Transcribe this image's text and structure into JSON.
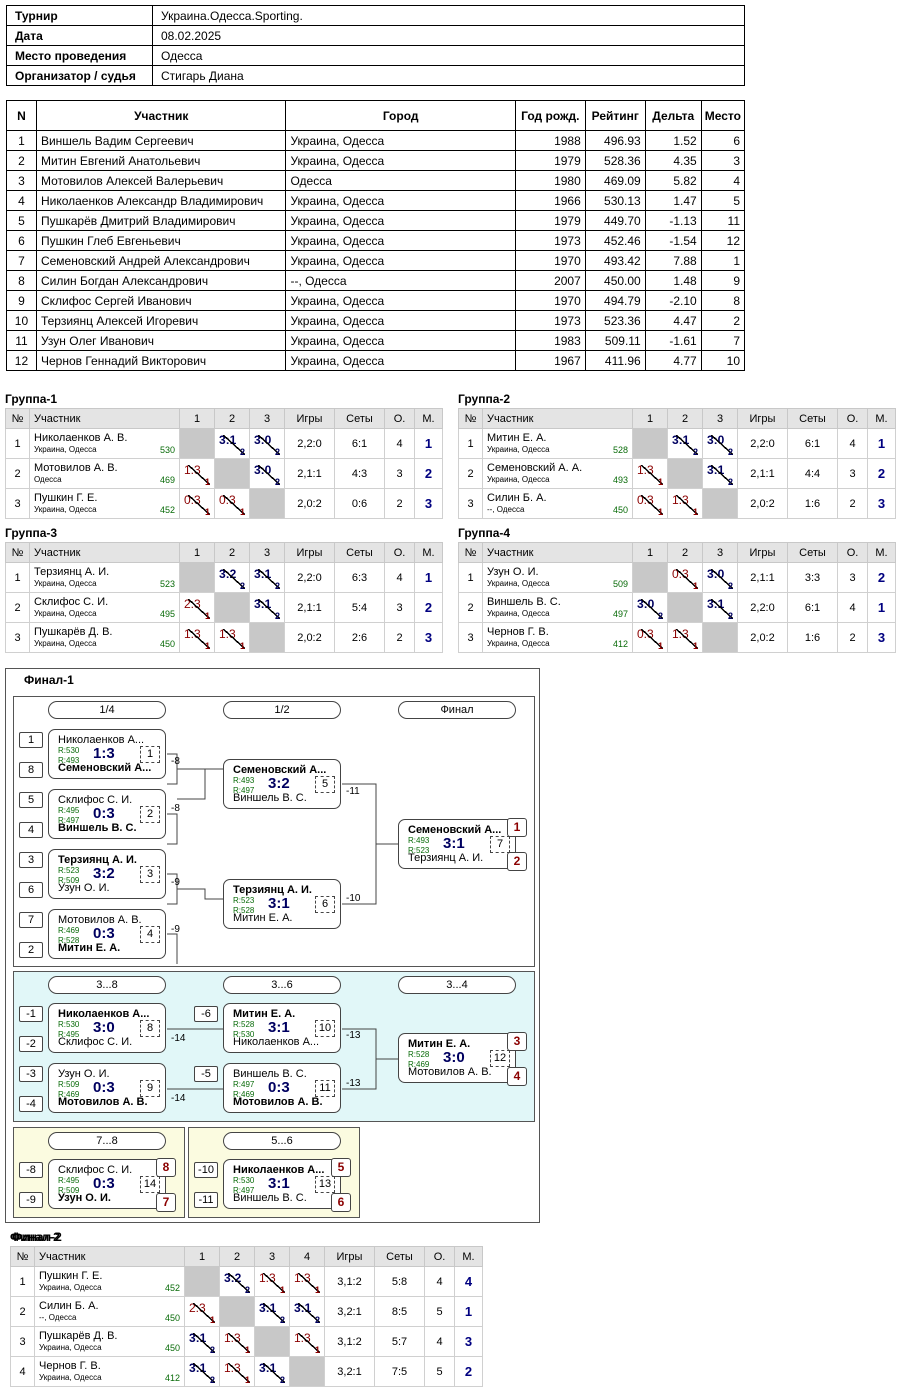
{
  "info": {
    "rows": [
      {
        "k": "Турнир",
        "v": "Украина.Одесса.Sporting."
      },
      {
        "k": "Дата",
        "v": "08.02.2025"
      },
      {
        "k": "Место проведения",
        "v": "Одесса"
      },
      {
        "k": "Организатор / судья",
        "v": "Стигарь Диана"
      }
    ]
  },
  "main": {
    "headers": [
      "N",
      "Участник",
      "Город",
      "Год рожд.",
      "Рейтинг",
      "Дельта",
      "Место"
    ],
    "rows": [
      [
        "1",
        "Виншель Вадим Сергеевич",
        "Украина, Одесса",
        "1988",
        "496.93",
        "1.52",
        "6"
      ],
      [
        "2",
        "Митин Евгений Анатольевич",
        "Украина, Одесса",
        "1979",
        "528.36",
        "4.35",
        "3"
      ],
      [
        "3",
        "Мотовилов Алексей Валерьевич",
        "Одесса",
        "1980",
        "469.09",
        "5.82",
        "4"
      ],
      [
        "4",
        "Николаенков Александр Владимирович",
        "Украина, Одесса",
        "1966",
        "530.13",
        "1.47",
        "5"
      ],
      [
        "5",
        "Пушкарёв Дмитрий Владимирович",
        "Украина, Одесса",
        "1979",
        "449.70",
        "-1.13",
        "11"
      ],
      [
        "6",
        "Пушкин Глеб Евгеньевич",
        "Украина, Одесса",
        "1973",
        "452.46",
        "-1.54",
        "12"
      ],
      [
        "7",
        "Семеновский Андрей Александрович",
        "Украина, Одесса",
        "1970",
        "493.42",
        "7.88",
        "1"
      ],
      [
        "8",
        "Силин Богдан Александрович",
        "--, Одесса",
        "2007",
        "450.00",
        "1.48",
        "9"
      ],
      [
        "9",
        "Склифос Сергей Иванович",
        "Украина, Одесса",
        "1970",
        "494.79",
        "-2.10",
        "8"
      ],
      [
        "10",
        "Терзиянц Алексей Игоревич",
        "Украина, Одесса",
        "1973",
        "523.36",
        "4.47",
        "2"
      ],
      [
        "11",
        "Узун Олег Иванович",
        "Украина, Одесса",
        "1983",
        "509.11",
        "-1.61",
        "7"
      ],
      [
        "12",
        "Чернов Геннадий Викторович",
        "Украина, Одесса",
        "1967",
        "411.96",
        "4.77",
        "10"
      ]
    ]
  },
  "gheaders": [
    "№",
    "Участник",
    "1",
    "2",
    "3",
    "Игры",
    "Сеты",
    "О.",
    "М."
  ],
  "groups": [
    {
      "title": "Группа-1",
      "rows": [
        {
          "n": "1",
          "name": "Николаенков А. В.",
          "city": "Украина, Одесса",
          "r": "530",
          "s": [
            "",
            "3:1",
            "3:0"
          ],
          "p": [
            "",
            "2",
            "2"
          ],
          "w": [
            0,
            1,
            1
          ],
          "g": "2,2:0",
          "sets": "6:1",
          "o": "4",
          "m": "1"
        },
        {
          "n": "2",
          "name": "Мотовилов А. В.",
          "city": "Одесса",
          "r": "469",
          "s": [
            "1:3",
            "",
            "3:0"
          ],
          "p": [
            "1",
            "",
            "2"
          ],
          "w": [
            0,
            0,
            1
          ],
          "g": "2,1:1",
          "sets": "4:3",
          "o": "3",
          "m": "2"
        },
        {
          "n": "3",
          "name": "Пушкин Г. Е.",
          "city": "Украина, Одесса",
          "r": "452",
          "s": [
            "0:3",
            "0:3",
            ""
          ],
          "p": [
            "1",
            "1",
            ""
          ],
          "w": [
            0,
            0,
            0
          ],
          "g": "2,0:2",
          "sets": "0:6",
          "o": "2",
          "m": "3"
        }
      ]
    },
    {
      "title": "Группа-2",
      "rows": [
        {
          "n": "1",
          "name": "Митин Е. А.",
          "city": "Украина, Одесса",
          "r": "528",
          "s": [
            "",
            "3:1",
            "3:0"
          ],
          "p": [
            "",
            "2",
            "2"
          ],
          "w": [
            0,
            1,
            1
          ],
          "g": "2,2:0",
          "sets": "6:1",
          "o": "4",
          "m": "1"
        },
        {
          "n": "2",
          "name": "Семеновский А. А.",
          "city": "Украина, Одесса",
          "r": "493",
          "s": [
            "1:3",
            "",
            "3:1"
          ],
          "p": [
            "1",
            "",
            "2"
          ],
          "w": [
            0,
            0,
            1
          ],
          "g": "2,1:1",
          "sets": "4:4",
          "o": "3",
          "m": "2"
        },
        {
          "n": "3",
          "name": "Силин Б. А.",
          "city": "--, Одесса",
          "r": "450",
          "s": [
            "0:3",
            "1:3",
            ""
          ],
          "p": [
            "1",
            "1",
            ""
          ],
          "w": [
            0,
            0,
            0
          ],
          "g": "2,0:2",
          "sets": "1:6",
          "o": "2",
          "m": "3"
        }
      ]
    },
    {
      "title": "Группа-3",
      "rows": [
        {
          "n": "1",
          "name": "Терзиянц А. И.",
          "city": "Украина, Одесса",
          "r": "523",
          "s": [
            "",
            "3:2",
            "3:1"
          ],
          "p": [
            "",
            "2",
            "2"
          ],
          "w": [
            0,
            1,
            1
          ],
          "g": "2,2:0",
          "sets": "6:3",
          "o": "4",
          "m": "1"
        },
        {
          "n": "2",
          "name": "Склифос С. И.",
          "city": "Украина, Одесса",
          "r": "495",
          "s": [
            "2:3",
            "",
            "3:1"
          ],
          "p": [
            "1",
            "",
            "2"
          ],
          "w": [
            0,
            0,
            1
          ],
          "g": "2,1:1",
          "sets": "5:4",
          "o": "3",
          "m": "2"
        },
        {
          "n": "3",
          "name": "Пушкарёв Д. В.",
          "city": "Украина, Одесса",
          "r": "450",
          "s": [
            "1:3",
            "1:3",
            ""
          ],
          "p": [
            "1",
            "1",
            ""
          ],
          "w": [
            0,
            0,
            0
          ],
          "g": "2,0:2",
          "sets": "2:6",
          "o": "2",
          "m": "3"
        }
      ]
    },
    {
      "title": "Группа-4",
      "rows": [
        {
          "n": "1",
          "name": "Узун О. И.",
          "city": "Украина, Одесса",
          "r": "509",
          "s": [
            "",
            "0:3",
            "3:0"
          ],
          "p": [
            "",
            "1",
            "2"
          ],
          "w": [
            0,
            0,
            1
          ],
          "g": "2,1:1",
          "sets": "3:3",
          "o": "3",
          "m": "2"
        },
        {
          "n": "2",
          "name": "Виншель В. С.",
          "city": "Украина, Одесса",
          "r": "497",
          "s": [
            "3:0",
            "",
            "3:1"
          ],
          "p": [
            "2",
            "",
            "2"
          ],
          "w": [
            1,
            0,
            1
          ],
          "g": "2,2:0",
          "sets": "6:1",
          "o": "4",
          "m": "1"
        },
        {
          "n": "3",
          "name": "Чернов Г. В.",
          "city": "Украина, Одесса",
          "r": "412",
          "s": [
            "0:3",
            "1:3",
            ""
          ],
          "p": [
            "1",
            "1",
            ""
          ],
          "w": [
            0,
            0,
            0
          ],
          "g": "2,0:2",
          "sets": "1:6",
          "o": "2",
          "m": "3"
        }
      ]
    }
  ],
  "final1": {
    "title": "Финал-1",
    "stages": [
      "1/4",
      "1/2",
      "Финал",
      "3...8",
      "3...6",
      "3...4",
      "7...8",
      "5...6"
    ],
    "seeds": [
      "1",
      "8",
      "5",
      "4",
      "3",
      "6",
      "7",
      "2",
      "-1",
      "-2",
      "-3",
      "-4",
      "-6",
      "-5",
      "-8",
      "-9",
      "-10",
      "-11"
    ],
    "losers": [
      "-8",
      "-8",
      "-9",
      "-9",
      "-11",
      "-10",
      "-14",
      "-14",
      "-13",
      "-13"
    ],
    "matches": [
      {
        "t": "Николаенков А...",
        "b": "Семеновский А...",
        "bt": 0,
        "bb": 1,
        "r1": "R:530",
        "r2": "R:493",
        "s": "1:3",
        "n": "1"
      },
      {
        "t": "Склифос С. И.",
        "b": "Виншель В. С.",
        "bt": 0,
        "bb": 1,
        "r1": "R:495",
        "r2": "R:497",
        "s": "0:3",
        "n": "2"
      },
      {
        "t": "Терзиянц А. И.",
        "b": "Узун О. И.",
        "bt": 1,
        "bb": 0,
        "r1": "R:523",
        "r2": "R:509",
        "s": "3:2",
        "n": "3"
      },
      {
        "t": "Мотовилов А. В.",
        "b": "Митин Е. А.",
        "bt": 0,
        "bb": 1,
        "r1": "R:469",
        "r2": "R:528",
        "s": "0:3",
        "n": "4"
      },
      {
        "t": "Семеновский А...",
        "b": "Виншель В. С.",
        "bt": 1,
        "bb": 0,
        "r1": "R:493",
        "r2": "R:497",
        "s": "3:2",
        "n": "5"
      },
      {
        "t": "Терзиянц А. И.",
        "b": "Митин Е. А.",
        "bt": 1,
        "bb": 0,
        "r1": "R:523",
        "r2": "R:528",
        "s": "3:1",
        "n": "6"
      },
      {
        "t": "Семеновский А...",
        "b": "Терзиянц А. И.",
        "bt": 1,
        "bb": 0,
        "r1": "R:493",
        "r2": "R:523",
        "s": "3:1",
        "n": "7"
      },
      {
        "t": "Николаенков А...",
        "b": "Склифос С. И.",
        "bt": 1,
        "bb": 0,
        "r1": "R:530",
        "r2": "R:495",
        "s": "3:0",
        "n": "8"
      },
      {
        "t": "Узун О. И.",
        "b": "Мотовилов А. В.",
        "bt": 0,
        "bb": 1,
        "r1": "R:509",
        "r2": "R:469",
        "s": "0:3",
        "n": "9"
      },
      {
        "t": "Митин Е. А.",
        "b": "Николаенков А...",
        "bt": 1,
        "bb": 0,
        "r1": "R:528",
        "r2": "R:530",
        "s": "3:1",
        "n": "10"
      },
      {
        "t": "Виншель В. С.",
        "b": "Мотовилов А. В.",
        "bt": 0,
        "bb": 1,
        "r1": "R:497",
        "r2": "R:469",
        "s": "0:3",
        "n": "11"
      },
      {
        "t": "Митин Е. А.",
        "b": "Мотовилов А. В.",
        "bt": 1,
        "bb": 0,
        "r1": "R:528",
        "r2": "R:469",
        "s": "3:0",
        "n": "12"
      },
      {
        "t": "Склифос С. И.",
        "b": "Узун О. И.",
        "bt": 0,
        "bb": 1,
        "r1": "R:495",
        "r2": "R:509",
        "s": "0:3",
        "n": "14"
      },
      {
        "t": "Николаенков А...",
        "b": "Виншель В. С.",
        "bt": 1,
        "bb": 0,
        "r1": "R:530",
        "r2": "R:497",
        "s": "3:1",
        "n": "13"
      }
    ],
    "places": [
      "1",
      "2",
      "3",
      "4",
      "8",
      "7",
      "5",
      "6"
    ]
  },
  "final2": {
    "title": "Финал-2",
    "headers": [
      "№",
      "Участник",
      "1",
      "2",
      "3",
      "4",
      "Игры",
      "Сеты",
      "О.",
      "М."
    ],
    "rows": [
      {
        "n": "1",
        "name": "Пушкин Г. Е.",
        "city": "Украина, Одесса",
        "r": "452",
        "s": [
          "",
          "3:2",
          "1:3",
          "1:3"
        ],
        "p": [
          "",
          "2",
          "1",
          "1"
        ],
        "w": [
          0,
          1,
          0,
          0
        ],
        "g": "3,1:2",
        "sets": "5:8",
        "o": "4",
        "m": "4"
      },
      {
        "n": "2",
        "name": "Силин Б. А.",
        "city": "--, Одесса",
        "r": "450",
        "s": [
          "2:3",
          "",
          "3:1",
          "3:1"
        ],
        "p": [
          "1",
          "",
          "2",
          "2"
        ],
        "w": [
          0,
          0,
          1,
          1
        ],
        "g": "3,2:1",
        "sets": "8:5",
        "o": "5",
        "m": "1"
      },
      {
        "n": "3",
        "name": "Пушкарёв Д. В.",
        "city": "Украина, Одесса",
        "r": "450",
        "s": [
          "3:1",
          "1:3",
          "",
          "1:3"
        ],
        "p": [
          "2",
          "1",
          "",
          "1"
        ],
        "w": [
          1,
          0,
          0,
          0
        ],
        "g": "3,1:2",
        "sets": "5:7",
        "o": "4",
        "m": "3"
      },
      {
        "n": "4",
        "name": "Чернов Г. В.",
        "city": "Украина, Одесса",
        "r": "412",
        "s": [
          "3:1",
          "1:3",
          "3:1",
          ""
        ],
        "p": [
          "2",
          "1",
          "2",
          ""
        ],
        "w": [
          1,
          0,
          1,
          0
        ],
        "g": "3,2:1",
        "sets": "7:5",
        "o": "5",
        "m": "2"
      }
    ]
  }
}
